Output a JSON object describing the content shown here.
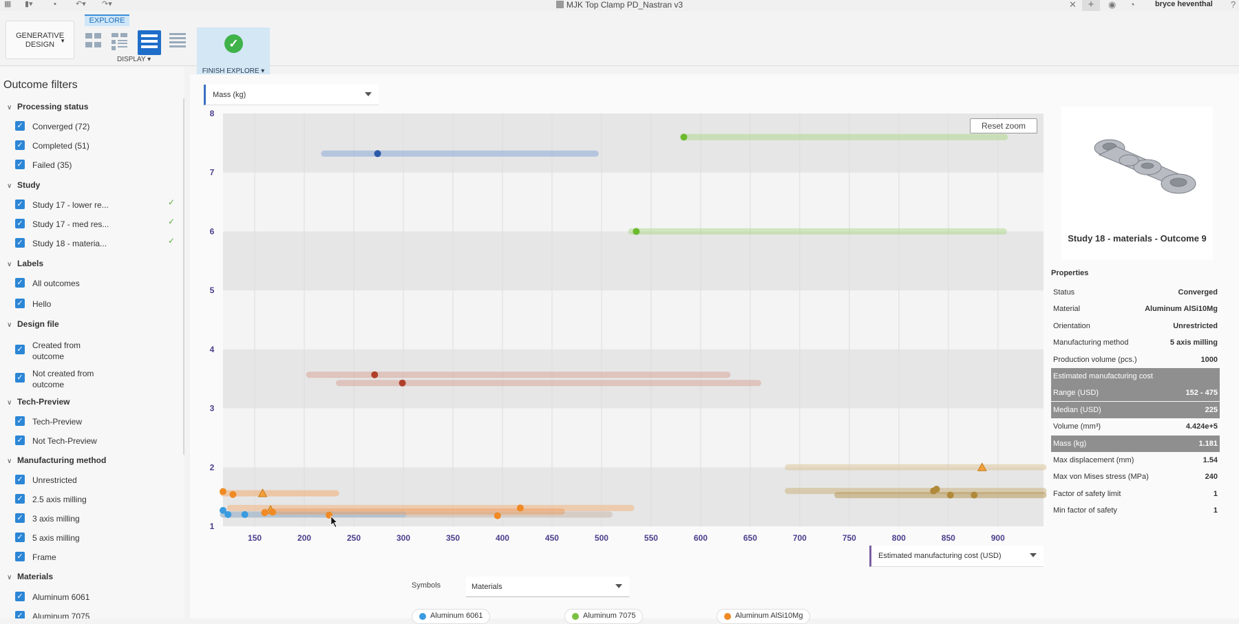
{
  "titlebar": {
    "doc_title": "MJK Top Clamp PD_Nastran v3",
    "user": "bryce heventhal",
    "icons": [
      "grid-icon",
      "file-icon",
      "save-icon",
      "undo-icon",
      "redo-icon",
      "close-icon",
      "plus-icon",
      "sync-icon",
      "clock-icon",
      "help-icon"
    ]
  },
  "toolbar": {
    "workspace_label": "GENERATIVE DESIGN",
    "explore_tab": "EXPLORE",
    "display_label": "DISPLAY",
    "finish_label": "FINISH EXPLORE"
  },
  "sidebar": {
    "title": "Outcome filters",
    "sections": {
      "processing": "Processing status",
      "study": "Study",
      "labels": "Labels",
      "design_file": "Design file",
      "tech_preview": "Tech-Preview",
      "mfg_method": "Manufacturing method",
      "materials": "Materials"
    },
    "items": {
      "converged": "Converged (72)",
      "completed": "Completed (51)",
      "failed": "Failed (35)",
      "study17_lower": "Study 17 - lower re...",
      "study17_med": "Study 17 - med res...",
      "study18": "Study 18 - materia...",
      "all_outcomes": "All outcomes",
      "hello": "Hello",
      "created_from": "Created from outcome",
      "not_created_from": "Not created from outcome",
      "tech_preview": "Tech-Preview",
      "not_tech_preview": "Not Tech-Preview",
      "unrestricted": "Unrestricted",
      "axis25": "2.5 axis milling",
      "axis3": "3 axis milling",
      "axis5": "5 axis milling",
      "frame": "Frame",
      "al6061": "Aluminum 6061",
      "al7075": "Aluminum 7075"
    }
  },
  "main": {
    "y_axis_select": "Mass (kg)",
    "x_axis_select": "Estimated manufacturing cost (USD)",
    "reset_zoom": "Reset zoom",
    "symbols_label": "Symbols",
    "symbols_select": "Materials",
    "legend": [
      {
        "label": "Aluminum 6061",
        "color": "#3a9be0"
      },
      {
        "label": "Aluminum 7075",
        "color": "#7bc142"
      },
      {
        "label": "Aluminum AlSi10Mg",
        "color": "#f08a24"
      }
    ]
  },
  "chart_data": {
    "type": "scatter",
    "xlabel": "Estimated manufacturing cost (USD)",
    "ylabel": "Mass (kg)",
    "xlim": [
      118,
      946
    ],
    "ylim": [
      1,
      8
    ],
    "xticks": [
      150,
      200,
      250,
      300,
      350,
      400,
      450,
      500,
      550,
      600,
      650,
      700,
      750,
      800,
      850,
      900
    ],
    "yticks": [
      1,
      2,
      3,
      4,
      5,
      6,
      7,
      8
    ],
    "bands": [
      [
        7,
        8
      ],
      [
        5,
        6
      ],
      [
        3,
        4
      ],
      [
        1,
        2
      ]
    ],
    "ranges": [
      {
        "x0": 220,
        "x1": 494,
        "y": 7.32,
        "color": "#7a9fd6",
        "opacity": 0.45,
        "w": 9
      },
      {
        "x0": 585,
        "x1": 907,
        "y": 7.6,
        "color": "#a6d67d",
        "opacity": 0.45,
        "w": 9
      },
      {
        "x0": 530,
        "x1": 906,
        "y": 6.0,
        "color": "#a6d67d",
        "opacity": 0.45,
        "w": 9
      },
      {
        "x0": 205,
        "x1": 627,
        "y": 3.57,
        "color": "#d79a8c",
        "opacity": 0.45,
        "w": 9
      },
      {
        "x0": 235,
        "x1": 658,
        "y": 3.43,
        "color": "#d79a8c",
        "opacity": 0.45,
        "w": 9
      },
      {
        "x0": 688,
        "x1": 946,
        "y": 2.0,
        "color": "#dcc79e",
        "opacity": 0.55,
        "w": 9
      },
      {
        "x0": 688,
        "x1": 946,
        "y": 1.6,
        "color": "#cbb482",
        "opacity": 0.55,
        "w": 9
      },
      {
        "x0": 738,
        "x1": 946,
        "y": 1.53,
        "color": "#b89a5c",
        "opacity": 0.55,
        "w": 9
      },
      {
        "x0": 118,
        "x1": 232,
        "y": 1.56,
        "color": "#f2b27a",
        "opacity": 0.6,
        "w": 9
      },
      {
        "x0": 125,
        "x1": 530,
        "y": 1.31,
        "color": "#f2b27a",
        "opacity": 0.5,
        "w": 9
      },
      {
        "x0": 118,
        "x1": 508,
        "y": 1.2,
        "color": "#c8b6a8",
        "opacity": 0.5,
        "w": 9
      },
      {
        "x0": 118,
        "x1": 300,
        "y": 1.2,
        "color": "#8fb8df",
        "opacity": 0.45,
        "w": 9
      },
      {
        "x0": 160,
        "x1": 460,
        "y": 1.25,
        "color": "#f09a55",
        "opacity": 0.45,
        "w": 9
      }
    ],
    "points": [
      {
        "x": 274,
        "y": 7.32,
        "color": "#2b5aa8"
      },
      {
        "x": 583,
        "y": 7.6,
        "color": "#6cba2e"
      },
      {
        "x": 535,
        "y": 6.0,
        "color": "#6cba2e"
      },
      {
        "x": 271,
        "y": 3.57,
        "color": "#b0402a"
      },
      {
        "x": 299,
        "y": 3.43,
        "color": "#b0402a"
      },
      {
        "x": 118,
        "y": 1.59,
        "color": "#f08a24"
      },
      {
        "x": 128,
        "y": 1.54,
        "color": "#f08a24"
      },
      {
        "x": 418,
        "y": 1.31,
        "color": "#f08a24"
      },
      {
        "x": 225,
        "y": 1.19,
        "color": "#f08a24"
      },
      {
        "x": 395,
        "y": 1.18,
        "color": "#f08a24"
      },
      {
        "x": 160,
        "y": 1.23,
        "color": "#f08a24"
      },
      {
        "x": 168,
        "y": 1.24,
        "color": "#f08a24"
      },
      {
        "x": 118,
        "y": 1.27,
        "color": "#3a9be0"
      },
      {
        "x": 123,
        "y": 1.2,
        "color": "#3a9be0"
      },
      {
        "x": 140,
        "y": 1.2,
        "color": "#3a9be0"
      },
      {
        "x": 838,
        "y": 1.63,
        "color": "#b08a3a"
      },
      {
        "x": 835,
        "y": 1.6,
        "color": "#b08a3a"
      },
      {
        "x": 852,
        "y": 1.53,
        "color": "#b08a3a"
      },
      {
        "x": 876,
        "y": 1.53,
        "color": "#b08a3a"
      }
    ],
    "warnings": [
      {
        "x": 884,
        "y": 2.0
      },
      {
        "x": 158,
        "y": 1.56
      },
      {
        "x": 166,
        "y": 1.28
      }
    ]
  },
  "properties_panel": {
    "outcome_title": "Study 18 - materials - Outcome 9",
    "heading": "Properties",
    "rows": [
      {
        "label": "Status",
        "value": "Converged",
        "hl": false
      },
      {
        "label": "Material",
        "value": "Aluminum AlSi10Mg",
        "hl": false
      },
      {
        "label": "Orientation",
        "value": "Unrestricted",
        "hl": false
      },
      {
        "label": "Manufacturing method",
        "value": "5 axis milling",
        "hl": false
      },
      {
        "label": "Production volume (pcs.)",
        "value": "1000",
        "hl": false
      },
      {
        "label": "Estimated manufacturing cost",
        "value": "",
        "hl": true
      },
      {
        "label": "Range (USD)",
        "value": "152 - 475",
        "hl": true,
        "sub": true
      },
      {
        "label": "Median (USD)",
        "value": "225",
        "hl": true,
        "sub": true
      },
      {
        "label": "Volume (mm³)",
        "value": "4.424e+5",
        "hl": false
      },
      {
        "label": "Mass (kg)",
        "value": "1.181",
        "hl": true
      },
      {
        "label": "Max displacement (mm)",
        "value": "1.54",
        "hl": false
      },
      {
        "label": "Max von Mises stress (MPa)",
        "value": "240",
        "hl": false
      },
      {
        "label": "Factor of safety limit",
        "value": "1",
        "hl": false
      },
      {
        "label": "Min factor of safety",
        "value": "1",
        "hl": false
      }
    ]
  }
}
